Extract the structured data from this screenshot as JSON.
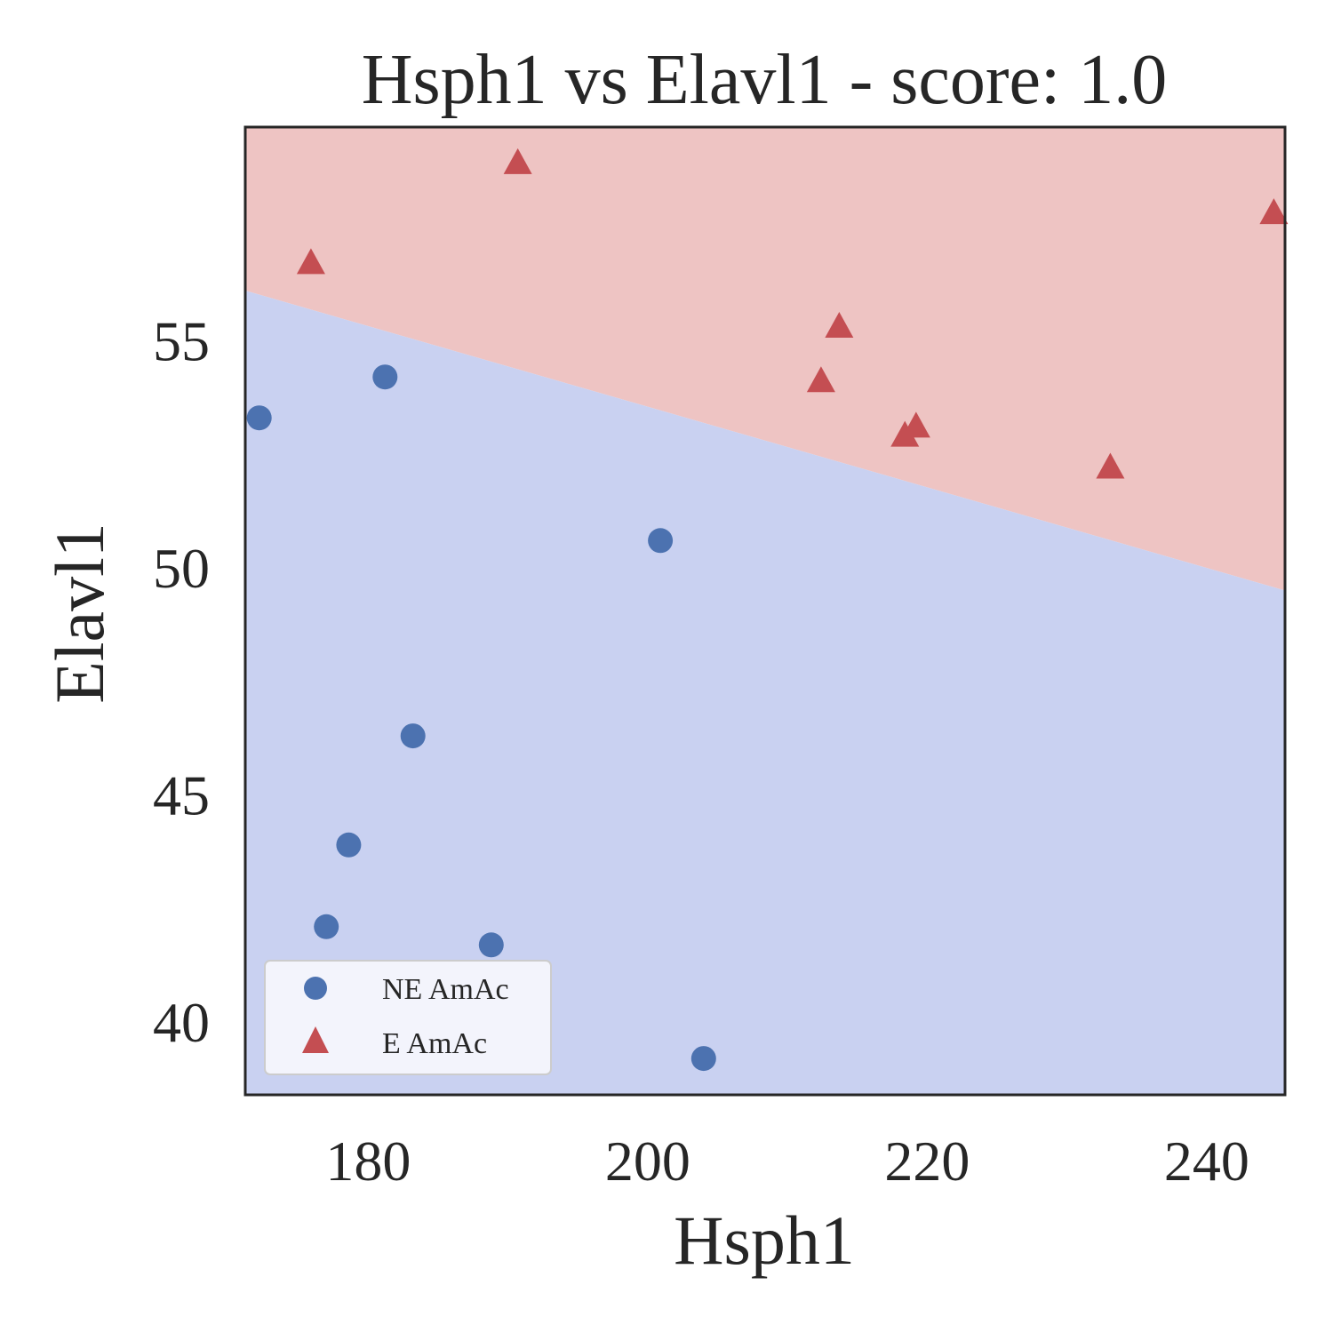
{
  "chart_data": {
    "type": "scatter",
    "title": "Hsph1 vs Elavl1 - score: 1.0",
    "xlabel": "Hsph1",
    "ylabel": "Elavl1",
    "xlim": [
      171.2,
      245.6
    ],
    "ylim": [
      38.4,
      59.7
    ],
    "xticks": [
      180,
      200,
      220,
      240
    ],
    "yticks": [
      40,
      45,
      50,
      55
    ],
    "grid": false,
    "legend": {
      "placement": "lower-left"
    },
    "decision_boundary": {
      "points": [
        [
          171.2,
          56.1
        ],
        [
          245.6,
          49.5
        ]
      ],
      "regions": [
        {
          "name": "E AmAc",
          "side": "above",
          "color": "#eec4c3"
        },
        {
          "name": "NE AmAc",
          "side": "below",
          "color": "#c9d1f1"
        }
      ]
    },
    "series": [
      {
        "name": "NE AmAc",
        "marker": "circle",
        "color": "#4c72b0",
        "points": [
          [
            172.2,
            53.3
          ],
          [
            181.2,
            54.2
          ],
          [
            183.2,
            46.3
          ],
          [
            178.6,
            43.9
          ],
          [
            177.0,
            42.1
          ],
          [
            188.8,
            41.7
          ],
          [
            200.9,
            50.6
          ],
          [
            204.0,
            39.2
          ]
        ]
      },
      {
        "name": "E AmAc",
        "marker": "triangle",
        "color": "#c44e52",
        "points": [
          [
            175.9,
            56.7
          ],
          [
            190.7,
            58.9
          ],
          [
            212.4,
            54.1
          ],
          [
            213.7,
            55.3
          ],
          [
            218.4,
            52.9
          ],
          [
            219.2,
            53.1
          ],
          [
            233.1,
            52.2
          ],
          [
            244.8,
            57.8
          ]
        ]
      }
    ]
  }
}
